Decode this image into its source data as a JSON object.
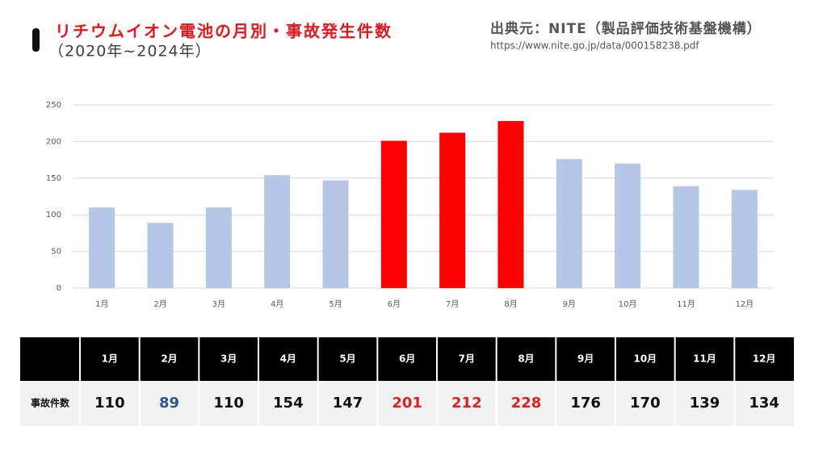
{
  "title": "リチウムイオン電池の月別・事故発生件数",
  "subtitle": "（2020年~2024年）",
  "source": {
    "label": "出典元：NITE（製品評価技術基盤機構）",
    "url": "https://www.nite.go.jp/data/000158238.pdf"
  },
  "chart_data": {
    "type": "bar",
    "categories": [
      "1月",
      "2月",
      "3月",
      "4月",
      "5月",
      "6月",
      "7月",
      "8月",
      "9月",
      "10月",
      "11月",
      "12月"
    ],
    "values": [
      110,
      89,
      110,
      154,
      147,
      201,
      212,
      228,
      176,
      170,
      139,
      134
    ],
    "colors": [
      "#b4c7e7",
      "#b4c7e7",
      "#b4c7e7",
      "#b4c7e7",
      "#b4c7e7",
      "#ff0000",
      "#ff0000",
      "#ff0000",
      "#b4c7e7",
      "#b4c7e7",
      "#b4c7e7",
      "#b4c7e7"
    ],
    "ylim": [
      0,
      250
    ],
    "yticks": [
      0,
      50,
      100,
      150,
      200,
      250
    ],
    "grid": true
  },
  "table": {
    "row_label": "事故件数",
    "text_colors": [
      "#111111",
      "#2f5597",
      "#111111",
      "#111111",
      "#111111",
      "#e02020",
      "#e02020",
      "#e02020",
      "#111111",
      "#111111",
      "#111111",
      "#111111"
    ]
  }
}
